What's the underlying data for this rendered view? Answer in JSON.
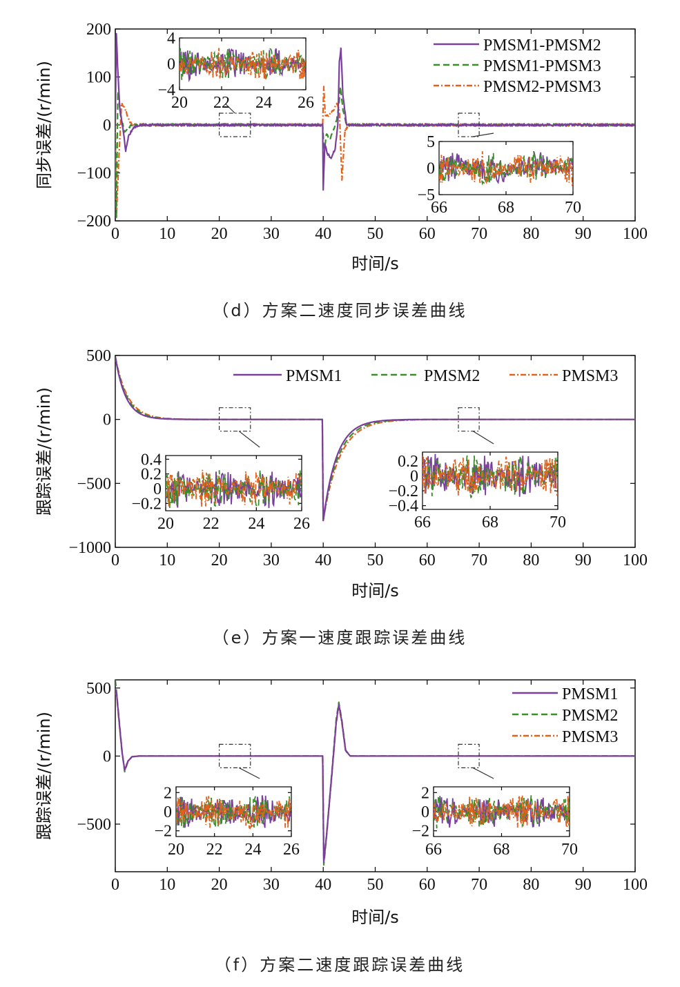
{
  "colors": {
    "purple": "#7a3e9d",
    "green": "#3c8c2c",
    "orange": "#e0621f",
    "axis": "#000000"
  },
  "chart_data": [
    {
      "id": "d",
      "type": "line",
      "caption": "（d）方案二速度同步误差曲线",
      "xlabel": "时间/s",
      "ylabel": "同步误差/(r/min)",
      "xlim": [
        0,
        100
      ],
      "ylim": [
        -200,
        200
      ],
      "xticks": [
        0,
        10,
        20,
        30,
        40,
        50,
        60,
        70,
        80,
        90,
        100
      ],
      "yticks": [
        -200,
        -100,
        0,
        100,
        200
      ],
      "ytick_labels": [
        "−200",
        "−100",
        "0",
        "100",
        "200"
      ],
      "legend_position": "top-right",
      "series": [
        {
          "name": "PMSM1-PMSM2",
          "style": "solid",
          "color": "purple",
          "x": [
            0,
            0.2,
            0.5,
            0.9,
            1.5,
            2.0,
            2.5,
            3.5,
            5,
            39.9,
            40.0,
            40.3,
            40.8,
            41.5,
            42.3,
            42.8,
            43.1,
            43.4,
            43.8,
            44.5,
            100
          ],
          "y": [
            0,
            190,
            110,
            30,
            -10,
            -55,
            -25,
            -5,
            0,
            0,
            -135,
            -40,
            -60,
            -70,
            -50,
            0,
            130,
            160,
            60,
            0,
            0
          ]
        },
        {
          "name": "PMSM1-PMSM3",
          "style": "dashed",
          "color": "green",
          "x": [
            0,
            0.2,
            0.5,
            1.0,
            1.8,
            2.5,
            3.5,
            5,
            39.9,
            40.2,
            40.6,
            41.3,
            42.0,
            42.6,
            43.0,
            43.3,
            43.8,
            44.5,
            100
          ],
          "y": [
            0,
            -195,
            70,
            20,
            -15,
            -5,
            0,
            0,
            0,
            -60,
            -20,
            -30,
            -10,
            10,
            40,
            80,
            30,
            0,
            0
          ]
        },
        {
          "name": "PMSM2-PMSM3",
          "style": "dashdot",
          "color": "orange",
          "x": [
            0,
            0.2,
            0.6,
            1.2,
            2.0,
            2.8,
            3.5,
            5,
            39.9,
            40.1,
            40.4,
            41.0,
            42.0,
            42.6,
            43.1,
            43.6,
            44.2,
            45,
            100
          ],
          "y": [
            0,
            -195,
            -90,
            45,
            30,
            5,
            0,
            0,
            0,
            80,
            20,
            20,
            30,
            45,
            30,
            -115,
            -10,
            0,
            0
          ]
        }
      ],
      "noise_band": 2.5,
      "insets": [
        {
          "xlim": [
            20,
            26
          ],
          "ylim": [
            -4,
            4
          ],
          "xticks": [
            20,
            22,
            24,
            26
          ],
          "yticks": [
            -4,
            0,
            4
          ],
          "ytick_labels": [
            "−4",
            "0",
            "4"
          ],
          "noise_amplitude": 2.6,
          "zoom_region_x": [
            20,
            26
          ]
        },
        {
          "xlim": [
            66,
            70
          ],
          "ylim": [
            -5,
            5
          ],
          "xticks": [
            66,
            68,
            70
          ],
          "yticks": [
            -5,
            0,
            5
          ],
          "ytick_labels": [
            "−5",
            "0",
            "5"
          ],
          "noise_amplitude": 3.2,
          "zoom_region_x": [
            66,
            70
          ]
        }
      ]
    },
    {
      "id": "e",
      "type": "line",
      "caption": "（e）方案一速度跟踪误差曲线",
      "xlabel": "时间/s",
      "ylabel": "跟踪误差/(r/min)",
      "xlim": [
        0,
        100
      ],
      "ylim": [
        -1000,
        500
      ],
      "xticks": [
        0,
        10,
        20,
        30,
        40,
        50,
        60,
        70,
        80,
        90,
        100
      ],
      "yticks": [
        -1000,
        -500,
        0,
        500
      ],
      "ytick_labels": [
        "−1000",
        "−500",
        "0",
        "500"
      ],
      "legend_position": "top-right",
      "series": [
        {
          "name": "PMSM1",
          "style": "solid",
          "color": "purple",
          "decay_tau": 2.0,
          "tau_after_40": 2.6
        },
        {
          "name": "PMSM2",
          "style": "dashed",
          "color": "green",
          "decay_tau": 2.2,
          "tau_after_40": 2.9
        },
        {
          "name": "PMSM3",
          "style": "dashdot",
          "color": "orange",
          "decay_tau": 2.4,
          "tau_after_40": 3.2
        }
      ],
      "step_start": 490,
      "step_at_40": -790,
      "noise_band": 0,
      "insets": [
        {
          "xlim": [
            20,
            26
          ],
          "ylim": [
            -0.3,
            0.45
          ],
          "xticks": [
            20,
            22,
            24,
            26
          ],
          "yticks": [
            -0.2,
            0,
            0.2,
            0.4
          ],
          "ytick_labels": [
            "−0.2",
            "0",
            "0.2",
            "0.4"
          ],
          "noise_amplitude": 0.28,
          "zoom_region_x": [
            20,
            26
          ]
        },
        {
          "xlim": [
            66,
            70
          ],
          "ylim": [
            -0.45,
            0.32
          ],
          "xticks": [
            66,
            68,
            70
          ],
          "yticks": [
            -0.4,
            -0.2,
            0,
            0.2
          ],
          "ytick_labels": [
            "−0.4",
            "−0.2",
            "0",
            "0.2"
          ],
          "noise_amplitude": 0.3,
          "zoom_region_x": [
            66,
            70
          ]
        }
      ]
    },
    {
      "id": "f",
      "type": "line",
      "caption": "（f）方案二速度跟踪误差曲线",
      "xlabel": "时间/s",
      "ylabel": "跟踪误差/(r/min)",
      "xlim": [
        0,
        100
      ],
      "ylim": [
        -850,
        560
      ],
      "xticks": [
        0,
        10,
        20,
        30,
        40,
        50,
        60,
        70,
        80,
        90,
        100
      ],
      "yticks": [
        -500,
        0,
        500
      ],
      "ytick_labels": [
        "−500",
        "0",
        "500"
      ],
      "legend_position": "top-right",
      "series": [
        {
          "name": "PMSM1",
          "style": "solid",
          "color": "purple",
          "x": [
            0,
            0.3,
            0.8,
            1.3,
            1.8,
            2.4,
            3.2,
            4.5,
            39.9,
            40.1,
            40.6,
            41.5,
            42.5,
            43.0,
            43.6,
            44.3,
            45.2,
            100
          ],
          "y": [
            500,
            440,
            230,
            30,
            -105,
            -40,
            -5,
            0,
            0,
            -780,
            -600,
            -200,
            250,
            380,
            250,
            40,
            0,
            0
          ]
        },
        {
          "name": "PMSM2",
          "style": "dashed",
          "color": "green",
          "x": [
            0,
            0.3,
            0.8,
            1.3,
            1.8,
            2.4,
            3.2,
            4.5,
            39.9,
            40.1,
            40.6,
            41.5,
            42.5,
            43.0,
            43.6,
            44.3,
            45.2,
            100
          ],
          "y": [
            560,
            450,
            240,
            35,
            -115,
            -45,
            -5,
            0,
            0,
            -800,
            -610,
            -190,
            270,
            395,
            260,
            45,
            0,
            0
          ]
        },
        {
          "name": "PMSM3",
          "style": "dashdot",
          "color": "orange",
          "x": [
            0,
            0.3,
            0.8,
            1.3,
            1.8,
            2.4,
            3.2,
            4.5,
            39.9,
            40.1,
            40.6,
            41.5,
            42.5,
            43.0,
            43.6,
            44.3,
            45.2,
            100
          ],
          "y": [
            480,
            430,
            220,
            25,
            -100,
            -38,
            -5,
            0,
            0,
            -770,
            -590,
            -210,
            240,
            370,
            240,
            38,
            0,
            0
          ]
        }
      ],
      "noise_band": 0,
      "insets": [
        {
          "xlim": [
            20,
            26
          ],
          "ylim": [
            -2.6,
            2.6
          ],
          "xticks": [
            20,
            22,
            24,
            26
          ],
          "yticks": [
            -2,
            0,
            2
          ],
          "ytick_labels": [
            "−2",
            "0",
            "2"
          ],
          "noise_amplitude": 1.8,
          "zoom_region_x": [
            20,
            26
          ]
        },
        {
          "xlim": [
            66,
            70
          ],
          "ylim": [
            -2.6,
            2.6
          ],
          "xticks": [
            66,
            68,
            70
          ],
          "yticks": [
            -2,
            0,
            2
          ],
          "ytick_labels": [
            "−2",
            "0",
            "2"
          ],
          "noise_amplitude": 1.8,
          "zoom_region_x": [
            66,
            70
          ]
        }
      ]
    }
  ]
}
